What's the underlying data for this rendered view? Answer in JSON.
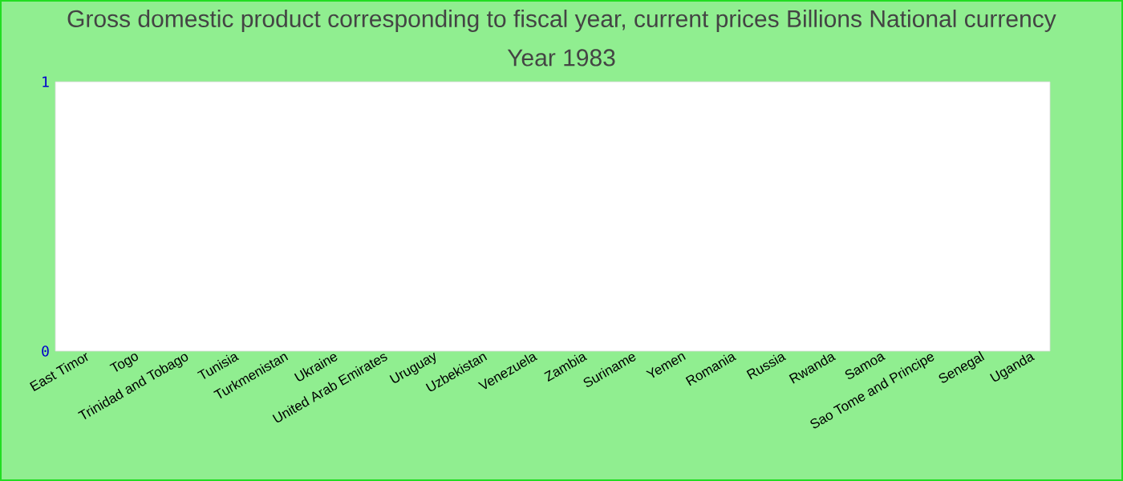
{
  "chart_data": {
    "type": "bar",
    "title": "Gross domestic product corresponding to fiscal year, current prices Billions National currency",
    "subtitle": "Year 1983",
    "categories": [
      "East Timor",
      "Togo",
      "Trinidad and Tobago",
      "Tunisia",
      "Turkmenistan",
      "Ukraine",
      "United Arab Emirates",
      "Uruguay",
      "Uzbekistan",
      "Venezuela",
      "Zambia",
      "Suriname",
      "Yemen",
      "Romania",
      "Russia",
      "Rwanda",
      "Samoa",
      "Sao Tome and Principe",
      "Senegal",
      "Uganda"
    ],
    "values": [
      null,
      null,
      null,
      null,
      null,
      null,
      null,
      null,
      null,
      null,
      null,
      null,
      null,
      null,
      null,
      null,
      null,
      null,
      null,
      null
    ],
    "ylim": [
      0,
      1
    ],
    "yticks": [
      0,
      1
    ]
  }
}
